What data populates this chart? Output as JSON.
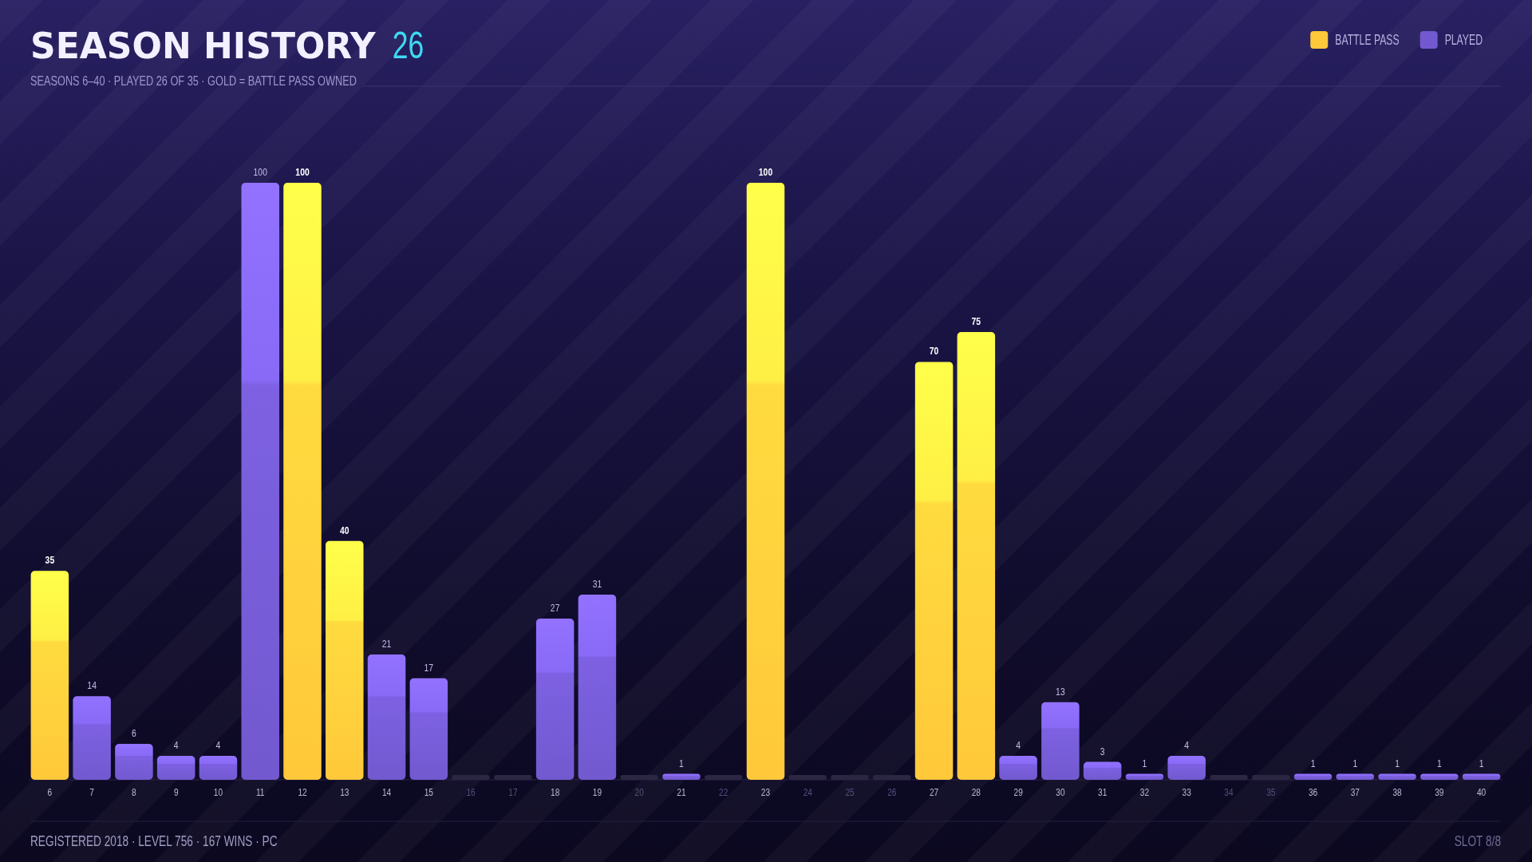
{
  "chart_data": {
    "type": "bar",
    "title": "SEASON HISTORY",
    "subtitle": "SEASONS 6–40 · PLAYED 26 OF 35 · GOLD = BATTLE PASS OWNED",
    "annotations": [
      "26",
      "REGISTERED 2018 · LEVEL 756 · 167 WINS · PC",
      "SLOT 8/8"
    ],
    "categories": [
      "6",
      "7",
      "8",
      "9",
      "10",
      "11",
      "12",
      "13",
      "14",
      "15",
      "16",
      "17",
      "18",
      "19",
      "20",
      "21",
      "22",
      "23",
      "24",
      "25",
      "26",
      "27",
      "28",
      "29",
      "30",
      "31",
      "32",
      "33",
      "34",
      "35",
      "36",
      "37",
      "38",
      "39",
      "40"
    ],
    "series": [
      {
        "name": "BATTLE PASS",
        "color": "#ffc83a",
        "values": [
          35,
          null,
          null,
          null,
          null,
          null,
          100,
          40,
          null,
          null,
          null,
          null,
          null,
          null,
          null,
          null,
          null,
          100,
          null,
          null,
          null,
          70,
          75,
          null,
          null,
          null,
          null,
          null,
          null,
          null,
          null,
          null,
          null,
          null,
          null
        ],
        "value_labels": [
          "35",
          null,
          null,
          null,
          null,
          null,
          "100",
          "40",
          null,
          null,
          null,
          null,
          null,
          null,
          null,
          null,
          null,
          "100",
          null,
          null,
          null,
          "70",
          "75",
          null,
          null,
          null,
          null,
          null,
          null,
          null,
          null,
          null,
          null,
          null,
          null
        ]
      },
      {
        "name": "PLAYED",
        "color": "#7259cf",
        "values": [
          null,
          14,
          6,
          4,
          4,
          100,
          null,
          null,
          21,
          17,
          null,
          null,
          27,
          31,
          null,
          1,
          null,
          null,
          null,
          null,
          null,
          null,
          null,
          4,
          13,
          3,
          1,
          4,
          null,
          null,
          1,
          1,
          1,
          1,
          1
        ],
        "value_labels": [
          null,
          "14",
          "6",
          "4",
          "4",
          "100",
          null,
          null,
          "21",
          "17",
          null,
          null,
          "27",
          "31",
          null,
          "1",
          null,
          null,
          null,
          null,
          null,
          null,
          null,
          "4",
          "13",
          "3",
          "1",
          "4",
          null,
          null,
          "1",
          "1",
          "1",
          "1",
          "1"
        ]
      }
    ],
    "stacked": true,
    "ylim": [
      0,
      100
    ],
    "tick_labels": "x",
    "legend": "top right"
  }
}
